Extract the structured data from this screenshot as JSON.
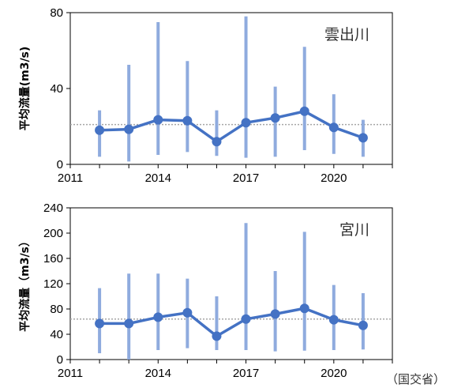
{
  "source_note": "（国交省）",
  "chart_data": [
    {
      "type": "line",
      "title": "雲出川",
      "ylabel": "平均流量(m3/s)",
      "xlabel": "",
      "xlim": [
        2011,
        2022
      ],
      "ylim": [
        0,
        80
      ],
      "yticks": [
        0,
        40,
        80
      ],
      "xticks": [
        2011,
        2014,
        2017,
        2020
      ],
      "x": [
        2012,
        2013,
        2014,
        2015,
        2016,
        2017,
        2018,
        2019,
        2020,
        2021
      ],
      "mean": [
        18,
        18.5,
        23.5,
        23,
        12,
        22,
        24.5,
        28,
        19.5,
        14
      ],
      "range_min": [
        4,
        1.5,
        5,
        6.5,
        4.5,
        3.5,
        4,
        7.5,
        5.5,
        4
      ],
      "range_max": [
        28.5,
        52.5,
        75,
        54.5,
        28.5,
        78,
        41,
        62,
        37,
        23.5
      ],
      "reference_line": 21,
      "grid": false
    },
    {
      "type": "line",
      "title": "宮川",
      "ylabel": "平均流量（m3/s）",
      "xlabel": "",
      "xlim": [
        2011,
        2022
      ],
      "ylim": [
        0,
        240
      ],
      "yticks": [
        0,
        40,
        80,
        120,
        160,
        200,
        240
      ],
      "xticks": [
        2011,
        2014,
        2017,
        2020
      ],
      "x": [
        2012,
        2013,
        2014,
        2015,
        2016,
        2017,
        2018,
        2019,
        2020,
        2021
      ],
      "mean": [
        57,
        57,
        67,
        74,
        37,
        64,
        72,
        81,
        63,
        54
      ],
      "range_min": [
        10,
        0,
        15,
        18,
        15,
        15,
        13,
        14,
        15,
        16
      ],
      "range_max": [
        113,
        136,
        136,
        128,
        100,
        216,
        140,
        202,
        118,
        105
      ],
      "reference_line": 64,
      "grid": false
    }
  ],
  "colors": {
    "range_bar": "#8fabde",
    "mean_line": "#4472c4",
    "reference_line": "#a6a6a6",
    "axis": "#000000"
  }
}
